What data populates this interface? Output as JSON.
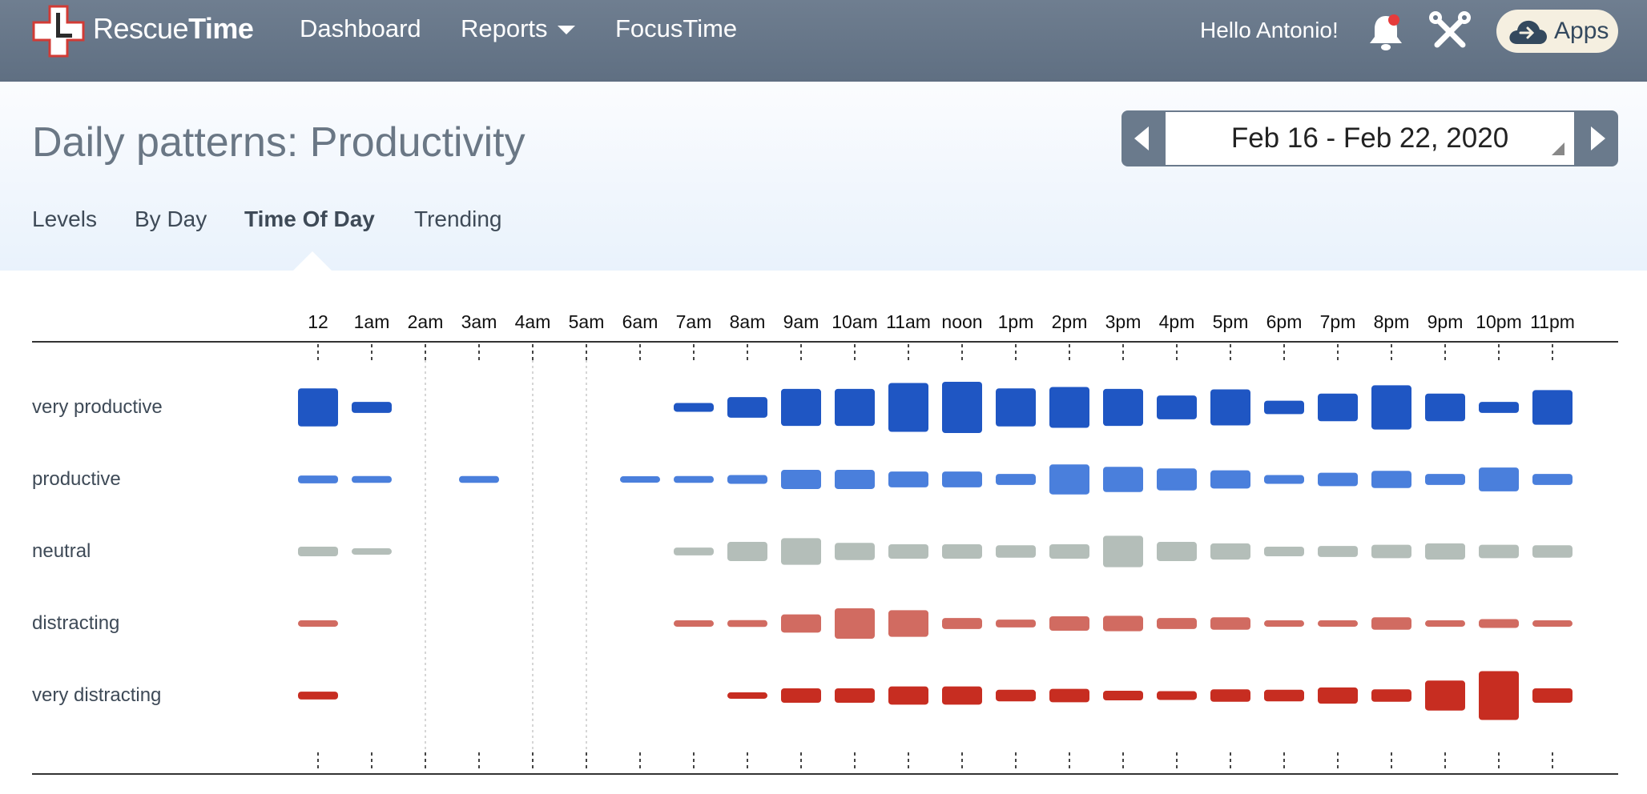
{
  "header": {
    "brand_light": "Rescue",
    "brand_bold": "Time",
    "nav": [
      {
        "label": "Dashboard"
      },
      {
        "label": "Reports"
      },
      {
        "label": "FocusTime"
      }
    ],
    "greeting": "Hello Antonio!",
    "apps_label": "Apps",
    "colors": {
      "bar": "#647487",
      "notification_dot": "#e63b3b"
    }
  },
  "page": {
    "title": "Daily patterns: Productivity",
    "tabs": [
      {
        "label": "Levels",
        "active": false
      },
      {
        "label": "By Day",
        "active": false
      },
      {
        "label": "Time Of Day",
        "active": true
      },
      {
        "label": "Trending",
        "active": false
      }
    ],
    "date_range": "Feb 16 - Feb 22, 2020"
  },
  "chart_data": {
    "type": "heatmap",
    "x": [
      "12",
      "1am",
      "2am",
      "3am",
      "4am",
      "5am",
      "6am",
      "7am",
      "8am",
      "9am",
      "10am",
      "11am",
      "noon",
      "1pm",
      "2pm",
      "3pm",
      "4pm",
      "5pm",
      "6pm",
      "7pm",
      "8pm",
      "9pm",
      "10pm",
      "11pm"
    ],
    "series": [
      {
        "name": "very productive",
        "color": "#1f56c3",
        "values": [
          0.72,
          0.15,
          0,
          0,
          0,
          0,
          0,
          0.1,
          0.35,
          0.7,
          0.7,
          0.95,
          1.0,
          0.72,
          0.78,
          0.7,
          0.42,
          0.68,
          0.2,
          0.5,
          0.85,
          0.5,
          0.15,
          0.65
        ]
      },
      {
        "name": "productive",
        "color": "#4a7fdc",
        "values": [
          0.08,
          0.06,
          0,
          0.06,
          0,
          0,
          0.05,
          0.06,
          0.1,
          0.32,
          0.32,
          0.25,
          0.25,
          0.15,
          0.55,
          0.45,
          0.38,
          0.3,
          0.1,
          0.2,
          0.28,
          0.15,
          0.42,
          0.15
        ]
      },
      {
        "name": "neutral",
        "color": "#b4beb9",
        "values": [
          0.12,
          0.05,
          0,
          0,
          0,
          0,
          0,
          0.08,
          0.32,
          0.48,
          0.28,
          0.22,
          0.22,
          0.18,
          0.22,
          0.58,
          0.32,
          0.26,
          0.12,
          0.15,
          0.2,
          0.26,
          0.2,
          0.18
        ]
      },
      {
        "name": "distracting",
        "color": "#d16b61",
        "values": [
          0.05,
          0,
          0,
          0,
          0,
          0,
          0,
          0.05,
          0.06,
          0.3,
          0.56,
          0.48,
          0.15,
          0.08,
          0.22,
          0.24,
          0.15,
          0.18,
          0.05,
          0.05,
          0.18,
          0.05,
          0.1,
          0.05
        ]
      },
      {
        "name": "very distracting",
        "color": "#c72d21",
        "values": [
          0.08,
          0,
          0,
          0,
          0,
          0,
          0,
          0,
          0.05,
          0.22,
          0.22,
          0.3,
          0.3,
          0.16,
          0.2,
          0.12,
          0.1,
          0.18,
          0.16,
          0.26,
          0.18,
          0.55,
          0.95,
          0.22
        ]
      }
    ],
    "marked_hours": [
      "2am",
      "4am",
      "5am"
    ]
  }
}
